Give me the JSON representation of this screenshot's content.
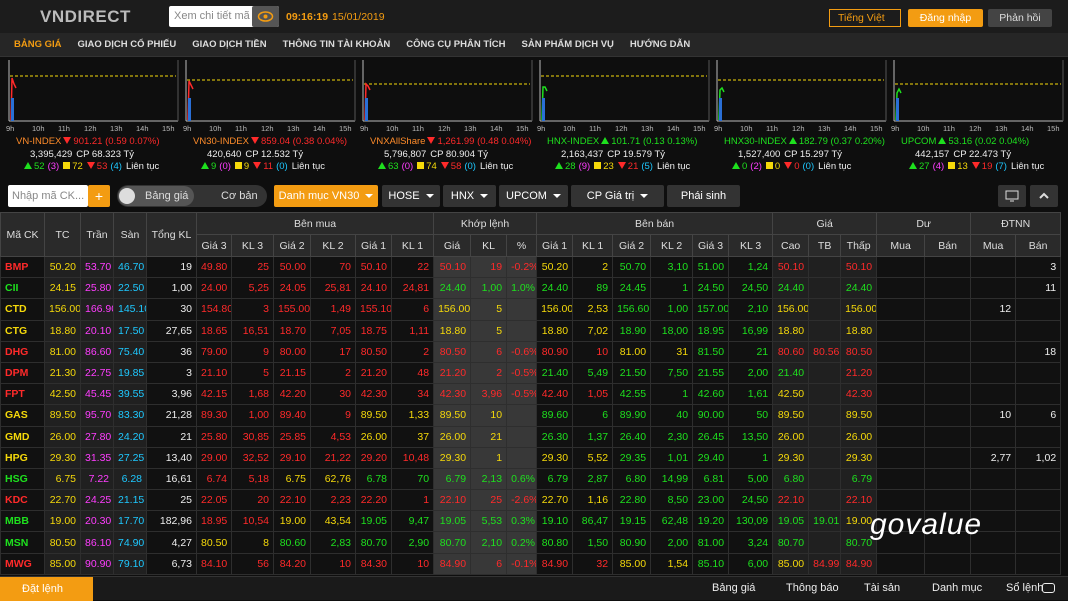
{
  "header": {
    "logo": "VNDIRECT",
    "search_placeholder": "Xem chi tiết mã",
    "clock": "09:16:19",
    "date": "15/01/2019",
    "language": "Tiếng Việt",
    "login": "Đăng nhập",
    "feedback": "Phản hồi"
  },
  "nav": [
    "BẢNG GIÁ",
    "GIAO DỊCH CỔ PHIẾU",
    "GIAO DỊCH TIỀN",
    "THÔNG TIN TÀI KHOẢN",
    "CÔNG CỤ PHÂN TÍCH",
    "SẢN PHẨM DỊCH VỤ",
    "HƯỚNG DẪN"
  ],
  "indices": {
    "time_labels": [
      "9h",
      "10h",
      "11h",
      "12h",
      "13h",
      "14h",
      "15h"
    ],
    "items": [
      {
        "name": "VN-INDEX",
        "dir": "down",
        "value": "901.21 (0.59 0.07%)",
        "volume": "3,395,429",
        "turnover": "CP 68.323 Tỷ",
        "up": "52",
        "ceiling": "(3)",
        "same": "72",
        "down": "53",
        "floor": "(4)",
        "status": "Liên tục"
      },
      {
        "name": "VN30-INDEX",
        "dir": "down",
        "value": "859.04 (0.38 0.04%)",
        "volume": "420,640",
        "turnover": "CP 12.532 Tỷ",
        "up": "9",
        "ceiling": "(0)",
        "same": "9",
        "down": "11",
        "floor": "(0)",
        "status": "Liên tục"
      },
      {
        "name": "VNXAllShare",
        "dir": "down",
        "value": "1,261.99 (0.48 0.04%)",
        "volume": "5,796,807",
        "turnover": "CP 80.904 Tỷ",
        "up": "63",
        "ceiling": "(0)",
        "same": "74",
        "down": "58",
        "floor": "(0)",
        "status": "Liên tục"
      },
      {
        "name": "HNX-INDEX",
        "dir": "up",
        "value": "101.71 (0.13 0.13%)",
        "volume": "2,163,437",
        "turnover": "CP 19.579 Tỷ",
        "up": "28",
        "ceiling": "(9)",
        "same": "23",
        "down": "21",
        "floor": "(5)",
        "status": "Liên tục"
      },
      {
        "name": "HNX30-INDEX",
        "dir": "up",
        "value": "182.79 (0.37 0.20%)",
        "volume": "1,527,400",
        "turnover": "CP 15.297 Tỷ",
        "up": "0",
        "ceiling": "(2)",
        "same": "0",
        "down": "0",
        "floor": "(0)",
        "status": "Liên tục"
      },
      {
        "name": "UPCOM",
        "dir": "up",
        "value": "53.16 (0.02 0.04%)",
        "volume": "442,157",
        "turnover": "CP 22.473 Tỷ",
        "up": "27",
        "ceiling": "(4)",
        "same": "13",
        "down": "19",
        "floor": "(7)",
        "status": "Liên tục"
      }
    ]
  },
  "toolbar": {
    "symbol_placeholder": "Nhập mã CK...",
    "add": "+",
    "views": [
      "Bảng giá",
      "Cơ bản"
    ],
    "tabs": [
      "Danh mục VN30",
      "HOSE",
      "HNX",
      "UPCOM",
      "CP Giá trị",
      "Phái sinh"
    ]
  },
  "table": {
    "groups": [
      "Bên mua",
      "Khớp lệnh",
      "Bên bán",
      "Giá",
      "Dư",
      "ĐTNN"
    ],
    "columns": [
      "Mã CK",
      "TC",
      "Trần",
      "Sàn",
      "Tổng KL",
      "Giá 3",
      "KL 3",
      "Giá 2",
      "KL 2",
      "Giá 1",
      "KL 1",
      "Giá",
      "KL",
      "%",
      "Giá 1",
      "KL 1",
      "Giá 2",
      "KL 2",
      "Giá 3",
      "KL 3",
      "Cao",
      "TB",
      "Thấp",
      "Mua",
      "Bán",
      "Mua",
      "Bán"
    ],
    "rows": [
      [
        "BMP",
        "50.20",
        "53.70",
        "46.70",
        "19",
        "49.80",
        "25",
        "50.00",
        "70",
        "50.10",
        "22",
        "50.10",
        "19",
        "-0.2%",
        "50.20",
        "2",
        "50.70",
        "3,10",
        "51.00",
        "1,24",
        "50.10",
        null,
        "50.10",
        null,
        null,
        null,
        "3"
      ],
      [
        "CII",
        "24.15",
        "25.80",
        "22.50",
        "1,00",
        "24.00",
        "5,25",
        "24.05",
        "25,81",
        "24.10",
        "24,81",
        "24.40",
        "1,00",
        "1.0%",
        "24.40",
        "89",
        "24.45",
        "1",
        "24.50",
        "24,50",
        "24.40",
        null,
        "24.40",
        null,
        null,
        null,
        "11"
      ],
      [
        "CTD",
        "156.00",
        "166.90",
        "145.10",
        "30",
        "154.80",
        "3",
        "155.00",
        "1,49",
        "155.10",
        "6",
        "156.00",
        "5",
        null,
        "156.00",
        "2,53",
        "156.60",
        "1,00",
        "157.00",
        "2,10",
        "156.00",
        null,
        "156.00",
        null,
        null,
        "12",
        null
      ],
      [
        "CTG",
        "18.80",
        "20.10",
        "17.50",
        "27,65",
        "18.65",
        "16,51",
        "18.70",
        "7,05",
        "18.75",
        "1,11",
        "18.80",
        "5",
        null,
        "18.80",
        "7,02",
        "18.90",
        "18,00",
        "18.95",
        "16,99",
        "18.80",
        null,
        "18.80",
        null,
        null,
        null,
        null
      ],
      [
        "DHG",
        "81.00",
        "86.60",
        "75.40",
        "36",
        "79.00",
        "9",
        "80.00",
        "17",
        "80.50",
        "2",
        "80.50",
        "6",
        "-0.6%",
        "80.90",
        "10",
        "81.00",
        "31",
        "81.50",
        "21",
        "80.60",
        "80.56",
        "80.50",
        null,
        null,
        null,
        "18"
      ],
      [
        "DPM",
        "21.30",
        "22.75",
        "19.85",
        "3",
        "21.10",
        "5",
        "21.15",
        "2",
        "21.20",
        "48",
        "21.20",
        "2",
        "-0.5%",
        "21.40",
        "5,49",
        "21.50",
        "7,50",
        "21.55",
        "2,00",
        "21.40",
        null,
        "21.20",
        null,
        null,
        null,
        null
      ],
      [
        "FPT",
        "42.50",
        "45.45",
        "39.55",
        "3,96",
        "42.15",
        "1,68",
        "42.20",
        "30",
        "42.30",
        "34",
        "42.30",
        "3,96",
        "-0.5%",
        "42.40",
        "1,05",
        "42.55",
        "1",
        "42.60",
        "1,61",
        "42.50",
        null,
        "42.30",
        null,
        null,
        null,
        null
      ],
      [
        "GAS",
        "89.50",
        "95.70",
        "83.30",
        "21,28",
        "89.30",
        "1,00",
        "89.40",
        "9",
        "89.50",
        "1,33",
        "89.50",
        "10",
        null,
        "89.60",
        "6",
        "89.90",
        "40",
        "90.00",
        "50",
        "89.50",
        null,
        "89.50",
        null,
        null,
        "10",
        "6"
      ],
      [
        "GMD",
        "26.00",
        "27.80",
        "24.20",
        "21",
        "25.80",
        "30,85",
        "25.85",
        "4,53",
        "26.00",
        "37",
        "26.00",
        "21",
        null,
        "26.30",
        "1,37",
        "26.40",
        "2,30",
        "26.45",
        "13,50",
        "26.00",
        null,
        "26.00",
        null,
        null,
        null,
        null
      ],
      [
        "HPG",
        "29.30",
        "31.35",
        "27.25",
        "13,40",
        "29.00",
        "32,52",
        "29.10",
        "21,22",
        "29.20",
        "10,48",
        "29.30",
        "1",
        null,
        "29.30",
        "5,52",
        "29.35",
        "1,01",
        "29.40",
        "1",
        "29.30",
        null,
        "29.30",
        null,
        null,
        "2,77",
        "1,02"
      ],
      [
        "HSG",
        "6.75",
        "7.22",
        "6.28",
        "16,61",
        "6.74",
        "5,18",
        "6.75",
        "62,76",
        "6.78",
        "70",
        "6.79",
        "2,13",
        "0.6%",
        "6.79",
        "2,87",
        "6.80",
        "14,99",
        "6.81",
        "5,00",
        "6.80",
        null,
        "6.79",
        null,
        null,
        null,
        null
      ],
      [
        "KDC",
        "22.70",
        "24.25",
        "21.15",
        "25",
        "22.05",
        "20",
        "22.10",
        "2,23",
        "22.20",
        "1",
        "22.10",
        "25",
        "-2.6%",
        "22.70",
        "1,16",
        "22.80",
        "8,50",
        "23.00",
        "24,50",
        "22.10",
        null,
        "22.10",
        null,
        null,
        null,
        null
      ],
      [
        "MBB",
        "19.00",
        "20.30",
        "17.70",
        "182,96",
        "18.95",
        "10,54",
        "19.00",
        "43,54",
        "19.05",
        "9,47",
        "19.05",
        "5,53",
        "0.3%",
        "19.10",
        "86,47",
        "19.15",
        "62,48",
        "19.20",
        "130,09",
        "19.05",
        "19.01",
        "19.00",
        null,
        null,
        null,
        null
      ],
      [
        "MSN",
        "80.50",
        "86.10",
        "74.90",
        "4,27",
        "80.50",
        "8",
        "80.60",
        "2,83",
        "80.70",
        "2,90",
        "80.70",
        "2,10",
        "0.2%",
        "80.80",
        "1,50",
        "80.90",
        "2,00",
        "81.00",
        "3,24",
        "80.70",
        null,
        "80.70",
        null,
        null,
        null,
        null
      ],
      [
        "MWG",
        "85.00",
        "90.90",
        "79.10",
        "6,73",
        "84.10",
        "56",
        "84.20",
        "10",
        "84.30",
        "10",
        "84.90",
        "6",
        "-0.1%",
        "84.90",
        "32",
        "85.00",
        "1,54",
        "85.10",
        "6,00",
        "85.00",
        "84.99",
        "84.90",
        null,
        null,
        null,
        null
      ]
    ]
  },
  "footer": {
    "order": "Đặt lệnh",
    "items": [
      "Bảng giá",
      "Thông báo",
      "Tài sản",
      "Danh mục",
      "Sổ lệnh"
    ]
  },
  "watermark": "govalue"
}
